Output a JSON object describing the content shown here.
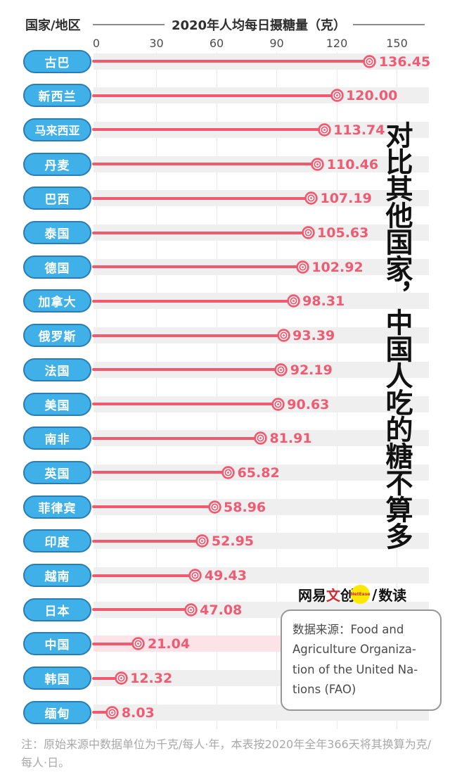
{
  "header": {
    "row_label": "国家/地区",
    "title": "2020年人均每日摄糖量（克）"
  },
  "chart_data": {
    "type": "bar",
    "subtype": "horizontal-lollipop",
    "title": "2020年人均每日摄糖量（克）",
    "xlabel": "2020年人均每日摄糖量（克）",
    "ylabel": "国家/地区",
    "categories": [
      "古巴",
      "新西兰",
      "马来西亚",
      "丹麦",
      "巴西",
      "泰国",
      "德国",
      "加拿大",
      "俄罗斯",
      "法国",
      "美国",
      "南非",
      "英国",
      "菲律宾",
      "印度",
      "越南",
      "日本",
      "中国",
      "韩国",
      "缅甸"
    ],
    "values": [
      136.45,
      120.0,
      113.74,
      110.46,
      107.19,
      105.63,
      102.92,
      98.31,
      93.39,
      92.19,
      90.63,
      81.91,
      65.82,
      58.96,
      52.95,
      49.43,
      47.08,
      21.04,
      12.32,
      8.03
    ],
    "value_labels": [
      "136.45",
      "120.00",
      "113.74",
      "110.46",
      "107.19",
      "105.63",
      "102.92",
      "98.31",
      "93.39",
      "92.19",
      "90.63",
      "81.91",
      "65.82",
      "58.96",
      "52.95",
      "49.43",
      "47.08",
      "21.04",
      "12.32",
      "8.03"
    ],
    "ticks": [
      0,
      30,
      60,
      90,
      120,
      150
    ],
    "xlim": [
      0,
      165
    ],
    "grid": "vertical",
    "legend": "none",
    "highlight_category": "中国",
    "colors": {
      "line": "#f0596e",
      "value_text": "#ee5b72",
      "band": "#efefef",
      "band_highlight": "#fce3e8",
      "pill_fill": "#3fb1e8",
      "pill_border": "#2b7cb3",
      "pill_text": "#ffffff"
    }
  },
  "headline": "对比其他国家，中国人吃的糖不算多",
  "logo": {
    "brand_prefix": "网易",
    "brand_accent": "文",
    "brand_suffix": "创",
    "badge": "NetEase",
    "separator": "/",
    "sub": "数读"
  },
  "source_box": {
    "text": "数据来源：Food and\nAgriculture Organiza-\ntion of the United Na-\ntions (FAO)"
  },
  "footnote": "注：原始来源中数据单位为千克/每人·年，本表按2020年全年366天将其换算为克/每人·日。"
}
